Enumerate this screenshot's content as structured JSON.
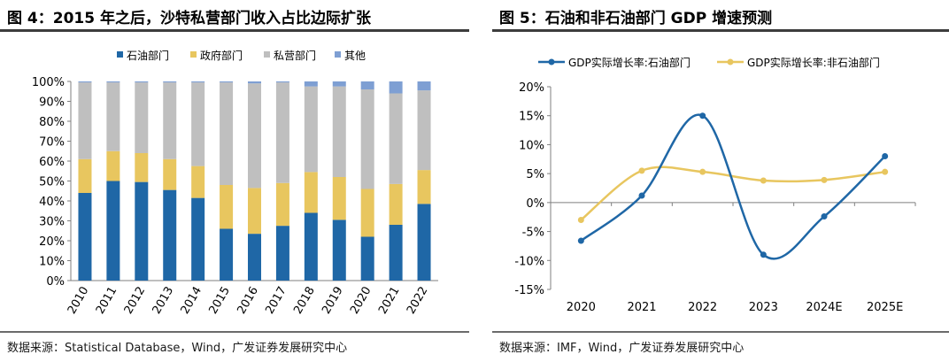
{
  "left": {
    "title": "图 4：2015 年之后，沙特私营部门收入占比边际扩张",
    "source": "数据来源：Statistical Database，Wind，广发证券发展研究中心"
  },
  "right": {
    "title": "图 5：石油和非石油部门 GDP 增速预测",
    "source": "数据来源：IMF，Wind，广发证券发展研究中心"
  },
  "chart_data": [
    {
      "type": "bar",
      "stacked": true,
      "normalized": true,
      "categories": [
        "2010",
        "2011",
        "2012",
        "2013",
        "2014",
        "2015",
        "2016",
        "2017",
        "2018",
        "2019",
        "2020",
        "2021",
        "2022"
      ],
      "series": [
        {
          "name": "石油部门",
          "color": "#1f67a6",
          "values": [
            44,
            50,
            49.5,
            45.5,
            41.5,
            26,
            23.5,
            27.5,
            34,
            30.5,
            22,
            28,
            38.5
          ]
        },
        {
          "name": "政府部门",
          "color": "#e8c65f",
          "values": [
            17,
            15,
            14.5,
            15.5,
            16,
            22,
            23,
            21.5,
            20.5,
            21.5,
            24,
            20.5,
            17
          ]
        },
        {
          "name": "私营部门",
          "color": "#bfbfbf",
          "values": [
            38.5,
            34.5,
            35.5,
            38.5,
            42,
            51.5,
            52.5,
            50.5,
            43,
            45.5,
            50,
            45.5,
            40
          ]
        },
        {
          "name": "其他",
          "color": "#7e9fd3",
          "values": [
            0.5,
            0.5,
            0.5,
            0.5,
            0.5,
            0.5,
            1,
            0.5,
            2.5,
            2.5,
            4,
            6,
            4.5
          ]
        }
      ],
      "ylim": [
        0,
        100
      ],
      "yticks": [
        "0%",
        "10%",
        "20%",
        "30%",
        "40%",
        "50%",
        "60%",
        "70%",
        "80%",
        "90%",
        "100%"
      ],
      "legend_position": "top"
    },
    {
      "type": "line",
      "smooth": true,
      "categories": [
        "2020",
        "2021",
        "2022",
        "2023",
        "2024E",
        "2025E"
      ],
      "series": [
        {
          "name": "GDP实际增长率:石油部门",
          "color": "#1f67a6",
          "values": [
            -6.6,
            1.2,
            15.0,
            -9.0,
            -2.4,
            8.0
          ]
        },
        {
          "name": "GDP实际增长率:非石油部门",
          "color": "#e8c65f",
          "values": [
            -3.0,
            5.5,
            5.3,
            3.8,
            3.9,
            5.3
          ]
        }
      ],
      "ylim": [
        -15,
        20
      ],
      "yticks": [
        "-15%",
        "-10%",
        "-5%",
        "0%",
        "5%",
        "10%",
        "15%",
        "20%"
      ],
      "legend_position": "top"
    }
  ]
}
